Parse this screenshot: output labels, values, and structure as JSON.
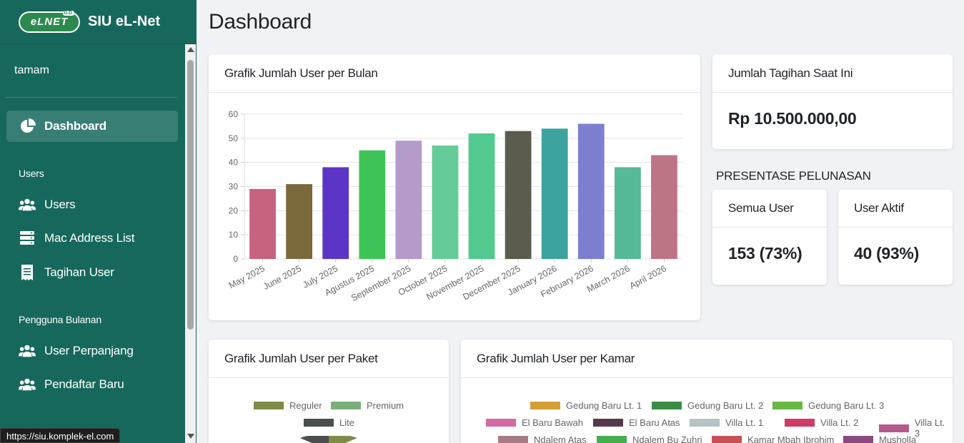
{
  "brand": {
    "logo_text": "eLNET",
    "logo_tag": "GD",
    "name": "SIU eL-Net"
  },
  "user": {
    "name": "tamam"
  },
  "nav": {
    "dashboard": "Dashboard",
    "section_users": "Users",
    "users": "Users",
    "mac_address_list": "Mac Address List",
    "tagihan_user": "Tagihan User",
    "section_monthly": "Pengguna Bulanan",
    "user_perpanjang": "User Perpanjang",
    "pendaftar_baru": "Pendaftar Baru"
  },
  "status_bar": {
    "url": "https://siu.komplek-el.com"
  },
  "page": {
    "title": "Dashboard"
  },
  "bar_card": {
    "title": "Grafik Jumlah User per Bulan"
  },
  "tagihan_card": {
    "title": "Jumlah Tagihan Saat Ini",
    "value": "Rp 10.500.000,00"
  },
  "pelunasan": {
    "label": "PRESENTASE PELUNASAN",
    "all": {
      "title": "Semua User",
      "value": "153 (73%)"
    },
    "active": {
      "title": "User Aktif",
      "value": "40 (93%)"
    }
  },
  "paket_card": {
    "title": "Grafik Jumlah User per Paket",
    "legend": [
      {
        "label": "Reguler",
        "color": "#7e8c4a"
      },
      {
        "label": "Premium",
        "color": "#79b07a"
      },
      {
        "label": "Lite",
        "color": "#4a4f4d"
      }
    ]
  },
  "kamar_card": {
    "title": "Grafik Jumlah User per Kamar",
    "legend": [
      {
        "label": "Gedung Baru Lt. 1",
        "color": "#d29e35"
      },
      {
        "label": "Gedung Baru Lt. 2",
        "color": "#3e8b47"
      },
      {
        "label": "Gedung Baru Lt. 3",
        "color": "#69b844"
      },
      {
        "label": "El Baru Bawah",
        "color": "#d46aa1"
      },
      {
        "label": "El Baru Atas",
        "color": "#553a4a"
      },
      {
        "label": "Villa Lt. 1",
        "color": "#b3c4c3"
      },
      {
        "label": "Villa Lt. 2",
        "color": "#cf3a67"
      },
      {
        "label": "Villa Lt. 3",
        "color": "#b55a8c"
      },
      {
        "label": "Ndalem Atas",
        "color": "#a67c84"
      },
      {
        "label": "Ndalem Bu Zuhri",
        "color": "#45ae4e"
      },
      {
        "label": "Kamar Mbah Ibrohim",
        "color": "#c75256"
      },
      {
        "label": "Musholla",
        "color": "#8a4a80"
      }
    ]
  },
  "chart_data": {
    "type": "bar",
    "categories": [
      "May 2025",
      "June 2025",
      "July 2025",
      "Agustus 2025",
      "September 2025",
      "October 2025",
      "November 2025",
      "December 2025",
      "January 2026",
      "February 2026",
      "March 2026",
      "April 2026"
    ],
    "values": [
      29,
      31,
      38,
      45,
      49,
      47,
      52,
      53,
      54,
      56,
      38,
      43
    ],
    "colors": [
      "#c7627f",
      "#7a6a3c",
      "#5c35c6",
      "#3ec456",
      "#b59bca",
      "#64cb99",
      "#52c98f",
      "#5b5c4d",
      "#3ca39f",
      "#7c7ecf",
      "#56b998",
      "#bd7585"
    ],
    "ylim": [
      0,
      60
    ],
    "yticks": [
      0,
      10,
      20,
      30,
      40,
      50,
      60
    ],
    "grid": true
  }
}
